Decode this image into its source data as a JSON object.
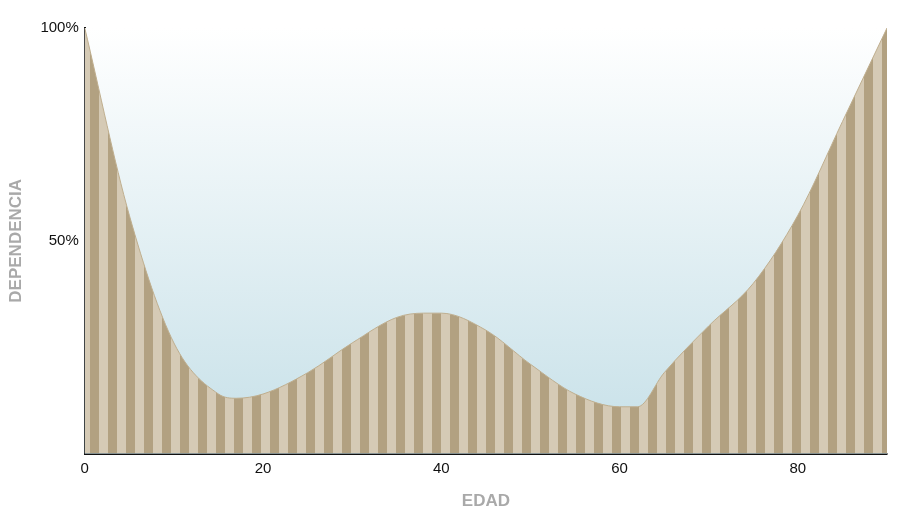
{
  "chart_data": {
    "type": "area",
    "x": [
      0,
      5,
      10,
      15,
      17,
      20,
      25,
      30,
      35,
      38,
      40,
      45,
      50,
      55,
      60,
      62,
      65,
      70,
      75,
      80,
      85,
      90
    ],
    "values": [
      100,
      56,
      26,
      14,
      13,
      14,
      19,
      26,
      32,
      33,
      33,
      29,
      21,
      14,
      11,
      11,
      19,
      30,
      40,
      56,
      78,
      100
    ],
    "color": "#bfae8e",
    "x_label": "EDAD",
    "y_label": "DEPENDENCIA",
    "xlim": [
      0,
      90
    ],
    "ylim": [
      0,
      100
    ],
    "xticks": [
      0,
      20,
      40,
      60,
      80
    ],
    "yticks": [
      {
        "value": 50,
        "label": "50%"
      },
      {
        "value": 100,
        "label": "100%"
      }
    ],
    "grid": true
  }
}
